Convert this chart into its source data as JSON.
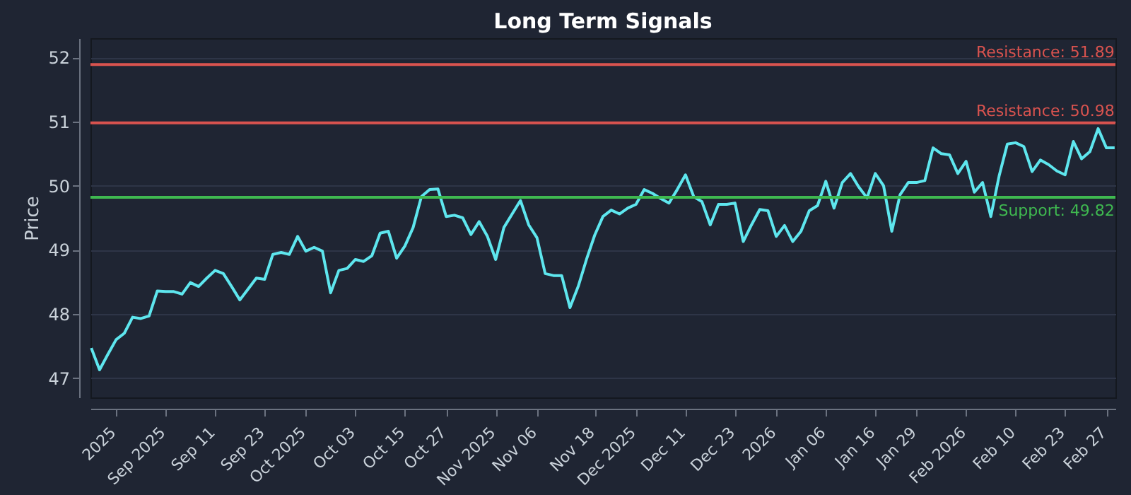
{
  "chart_data": {
    "type": "line",
    "title": "Long Term Signals",
    "ylabel": "Price",
    "categories": [
      null,
      null,
      null,
      "2025",
      null,
      null,
      null,
      null,
      null,
      "Sep 2025",
      null,
      null,
      null,
      null,
      null,
      "Sep 11",
      null,
      null,
      null,
      null,
      null,
      "Sep 23",
      null,
      null,
      null,
      null,
      "Oct 2025",
      null,
      null,
      null,
      null,
      null,
      "Oct 03",
      null,
      null,
      null,
      null,
      null,
      "Oct 15",
      null,
      null,
      null,
      null,
      "Oct 27",
      null,
      null,
      null,
      null,
      null,
      "Nov 2025",
      null,
      null,
      null,
      null,
      "Nov 06",
      null,
      null,
      null,
      null,
      null,
      null,
      "Nov 18",
      null,
      null,
      null,
      null,
      "Dec 2025",
      null,
      null,
      null,
      null,
      null,
      "Dec 11",
      null,
      null,
      null,
      null,
      null,
      "Dec 23",
      null,
      null,
      null,
      null,
      "2026",
      null,
      null,
      null,
      null,
      null,
      "Jan 06",
      null,
      null,
      null,
      null,
      null,
      "Jan 16",
      null,
      null,
      null,
      null,
      "Jan 29",
      null,
      null,
      null,
      null,
      null,
      "Feb 2026",
      null,
      null,
      null,
      null,
      null,
      "Feb 10",
      null,
      null,
      null,
      null,
      null,
      "Feb 23",
      null,
      null,
      null,
      null,
      "Feb 27",
      null
    ],
    "series": [
      {
        "color": "#5ee6ee",
        "values": [
          47.47,
          47.13,
          47.37,
          47.6,
          47.7,
          47.95,
          47.93,
          47.97,
          48.36,
          48.35,
          48.35,
          48.31,
          48.49,
          48.43,
          48.56,
          48.68,
          48.63,
          48.43,
          48.22,
          48.39,
          48.56,
          48.54,
          48.93,
          48.96,
          48.93,
          49.21,
          48.98,
          49.04,
          48.98,
          48.33,
          48.68,
          48.71,
          48.85,
          48.82,
          48.91,
          49.26,
          49.29,
          48.87,
          49.06,
          49.35,
          49.83,
          49.94,
          49.95,
          49.52,
          49.54,
          49.5,
          49.24,
          49.44,
          49.21,
          48.85,
          49.35,
          49.56,
          49.77,
          49.39,
          49.19,
          48.63,
          48.6,
          48.6,
          48.1,
          48.43,
          48.85,
          49.23,
          49.52,
          49.62,
          49.56,
          49.65,
          49.71,
          49.94,
          49.88,
          49.8,
          49.73,
          49.94,
          50.17,
          49.83,
          49.75,
          49.39,
          49.71,
          49.71,
          49.73,
          49.13,
          49.39,
          49.63,
          49.61,
          49.21,
          49.38,
          49.13,
          49.29,
          49.61,
          49.69,
          50.07,
          49.65,
          50.05,
          50.19,
          49.98,
          49.81,
          50.19,
          50.0,
          49.29,
          49.86,
          50.05,
          50.05,
          50.08,
          50.59,
          50.5,
          50.48,
          50.19,
          50.38,
          49.9,
          50.05,
          49.52,
          50.15,
          50.65,
          50.67,
          50.61,
          50.22,
          50.4,
          50.33,
          50.23,
          50.17,
          50.69,
          50.42,
          50.53,
          50.89,
          50.59,
          50.59
        ]
      }
    ],
    "ylim": [
      46.7,
      52.3
    ],
    "yticks": [
      47,
      48,
      49,
      50,
      51,
      52
    ],
    "grid": "y",
    "ref_lines": [
      {
        "axis": "y",
        "value": 51.89,
        "label": "Resistance: 51.89",
        "color": "#d9534f"
      },
      {
        "axis": "y",
        "value": 50.98,
        "label": "Resistance: 50.98",
        "color": "#d9534f"
      },
      {
        "axis": "y",
        "value": 49.82,
        "label": "Support: 49.82",
        "color": "#3fb950"
      }
    ]
  }
}
